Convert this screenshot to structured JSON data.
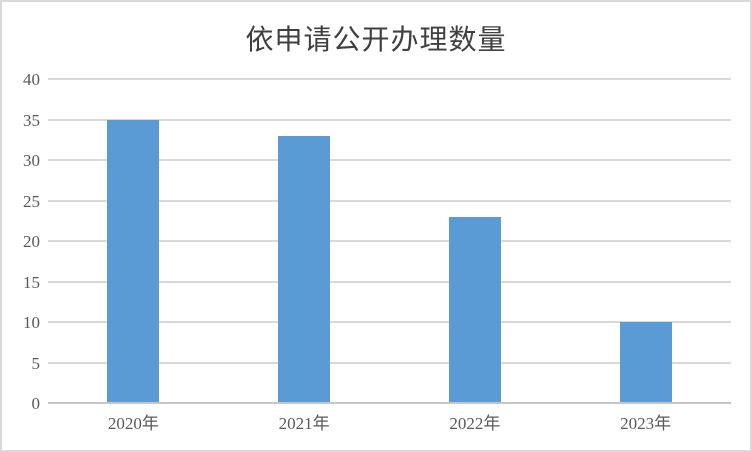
{
  "chart_data": {
    "type": "bar",
    "title": "依申请公开办理数量",
    "categories": [
      "2020年",
      "2021年",
      "2022年",
      "2023年"
    ],
    "values": [
      35,
      33,
      23,
      10
    ],
    "xlabel": "",
    "ylabel": "",
    "ylim": [
      0,
      40
    ],
    "ytick_step": 5,
    "ytick_labels": [
      "0",
      "5",
      "10",
      "15",
      "20",
      "25",
      "30",
      "35",
      "40"
    ],
    "grid": true,
    "legend": false,
    "colors": {
      "bar": "#5B9BD5",
      "gridline": "#D9D9D9",
      "axis_line": "#C6C6C6",
      "tick_label": "#595959",
      "title": "#404040",
      "background": "#FFFFFF",
      "frame_border": "#D9D9D9"
    }
  }
}
